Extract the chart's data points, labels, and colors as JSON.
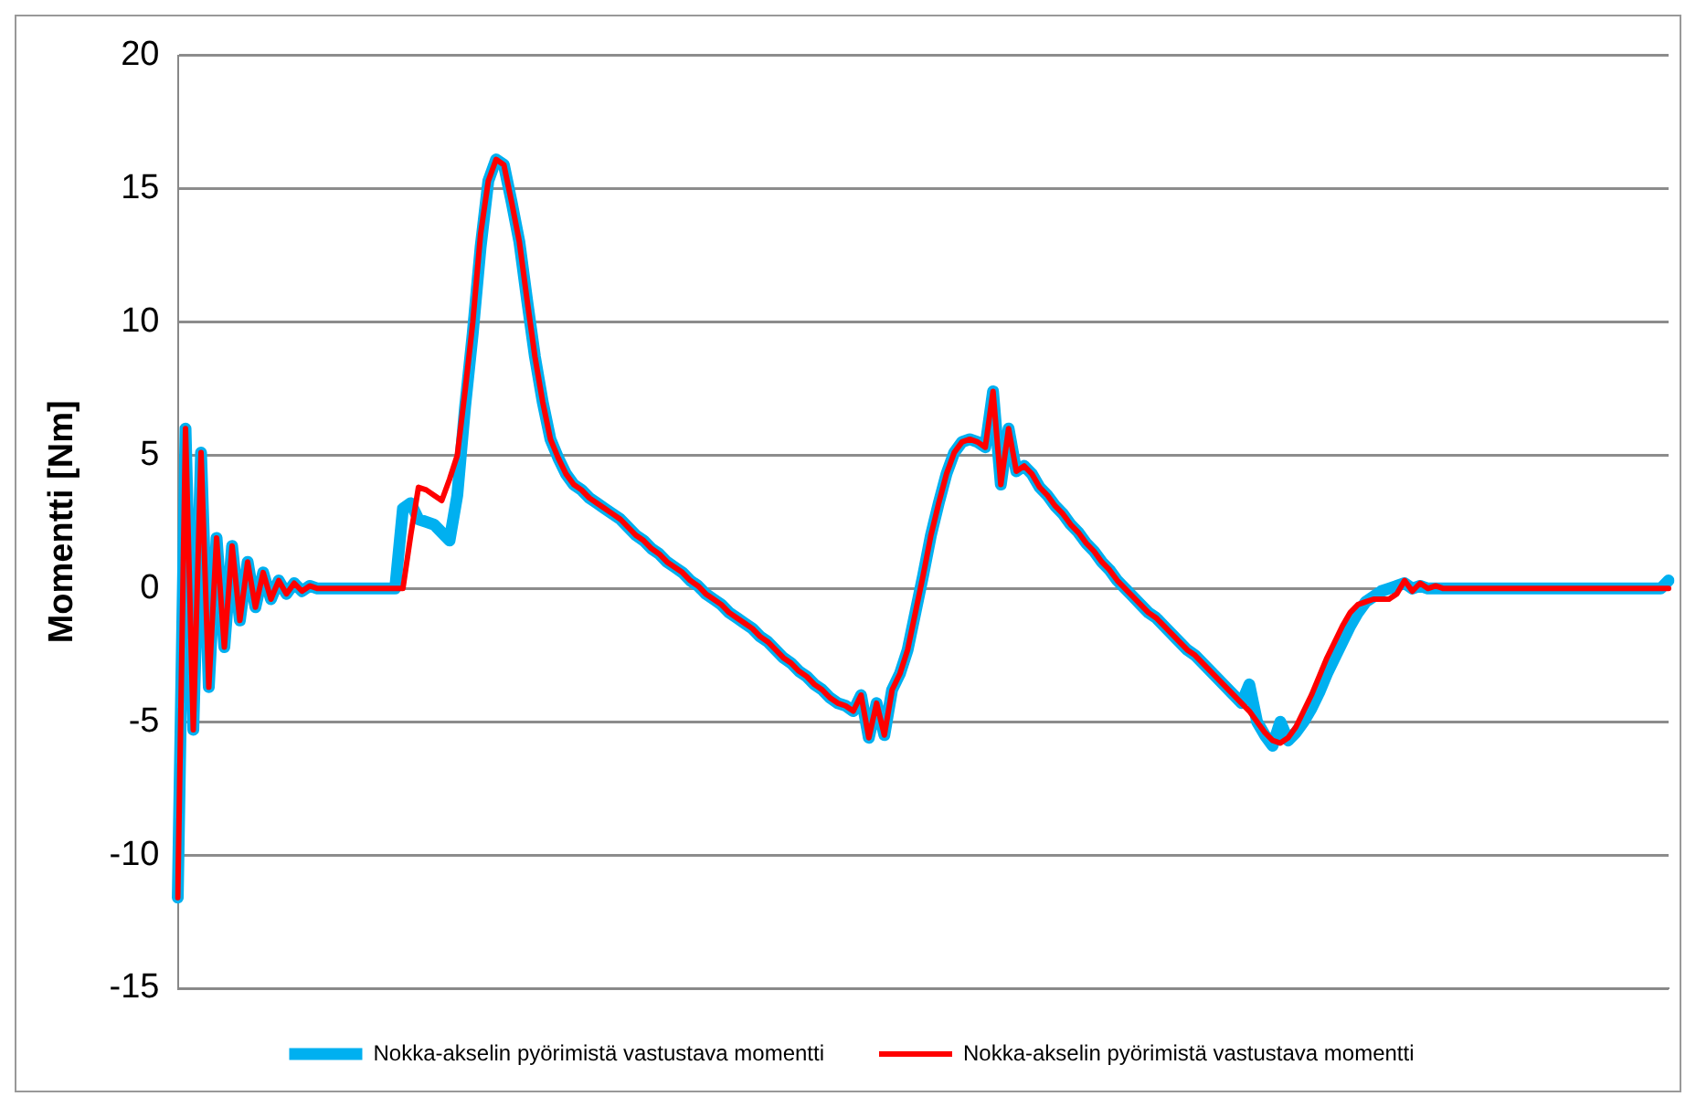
{
  "chart_data": {
    "type": "line",
    "ylabel": "Momentti [Nm]",
    "ylim": [
      -15,
      20
    ],
    "yticks": [
      -15,
      -10,
      -5,
      0,
      5,
      10,
      15,
      20
    ],
    "grid": "y",
    "legend": "bottom",
    "marker": "none",
    "line_style": "solid",
    "tick_labels": "y",
    "categories": [
      null,
      null,
      null,
      null,
      null,
      null,
      null,
      null,
      null,
      null,
      null,
      null,
      null,
      null,
      null,
      null,
      null,
      null,
      null,
      null,
      null,
      null,
      null,
      null,
      null,
      null,
      null,
      null,
      null,
      null,
      null,
      null,
      null,
      null,
      null,
      null,
      null,
      null,
      null,
      null,
      null,
      null,
      null,
      null,
      null,
      null,
      null,
      null,
      null,
      null,
      null,
      null,
      null,
      null,
      null,
      null,
      null,
      null,
      null,
      null,
      null,
      null,
      null,
      null,
      null,
      null,
      null,
      null,
      null,
      null,
      null,
      null,
      null,
      null,
      null,
      null,
      null,
      null,
      null,
      null,
      null,
      null,
      null,
      null,
      null,
      null,
      null,
      null,
      null,
      null,
      null,
      null,
      null,
      null,
      null,
      null,
      null,
      null,
      null,
      null,
      null,
      null,
      null,
      null,
      null,
      null,
      null,
      null,
      null,
      null,
      null,
      null,
      null,
      null,
      null,
      null,
      null,
      null,
      null,
      null,
      null,
      null,
      null,
      null,
      null,
      null,
      null,
      null,
      null,
      null,
      null,
      null,
      null,
      null,
      null,
      null,
      null,
      null,
      null,
      null,
      null,
      null,
      null,
      null,
      null,
      null,
      null,
      null,
      null,
      null,
      null,
      null,
      null,
      null,
      null,
      null,
      null,
      null,
      null,
      null,
      null,
      null,
      null,
      null,
      null,
      null,
      null,
      null,
      null,
      null,
      null,
      null,
      null,
      null,
      null,
      null,
      null,
      null,
      null,
      null,
      null,
      null,
      null,
      null,
      null,
      null,
      null,
      null,
      null,
      null,
      null,
      null,
      null
    ],
    "series": [
      {
        "name": "Nokka-akselin pyörimistä vastustava momentti",
        "color": "#00b0f0",
        "values": [
          -11.6,
          6.0,
          -5.3,
          5.1,
          -3.7,
          1.9,
          -2.2,
          1.6,
          -1.2,
          1.0,
          -0.7,
          0.6,
          -0.4,
          0.3,
          -0.2,
          0.2,
          -0.1,
          0.1,
          0,
          0,
          0,
          0,
          0,
          0,
          0,
          0,
          0,
          0,
          0,
          3.0,
          3.2,
          2.6,
          2.5,
          2.4,
          2.1,
          1.8,
          3.5,
          6.8,
          9.6,
          12.8,
          15.3,
          16.1,
          15.9,
          14.5,
          13.0,
          10.8,
          8.7,
          7.0,
          5.6,
          4.9,
          4.3,
          3.9,
          3.7,
          3.4,
          3.2,
          3.0,
          2.8,
          2.6,
          2.3,
          2.0,
          1.8,
          1.5,
          1.3,
          1.0,
          0.8,
          0.6,
          0.3,
          0.1,
          -0.2,
          -0.4,
          -0.6,
          -0.9,
          -1.1,
          -1.3,
          -1.5,
          -1.8,
          -2.0,
          -2.3,
          -2.6,
          -2.8,
          -3.1,
          -3.3,
          -3.6,
          -3.8,
          -4.1,
          -4.3,
          -4.4,
          -4.6,
          -4.0,
          -5.6,
          -4.3,
          -5.5,
          -3.8,
          -3.2,
          -2.3,
          -0.9,
          0.5,
          2.0,
          3.2,
          4.3,
          5.1,
          5.5,
          5.6,
          5.5,
          5.3,
          7.4,
          3.9,
          6.0,
          4.4,
          4.6,
          4.3,
          3.8,
          3.5,
          3.1,
          2.8,
          2.4,
          2.1,
          1.7,
          1.4,
          1.0,
          0.7,
          0.3,
          0.0,
          -0.3,
          -0.6,
          -0.9,
          -1.1,
          -1.4,
          -1.7,
          -2.0,
          -2.3,
          -2.5,
          -2.8,
          -3.1,
          -3.4,
          -3.7,
          -4.0,
          -4.3,
          -3.6,
          -5.0,
          -5.5,
          -5.9,
          -5.0,
          -5.7,
          -5.4,
          -5.0,
          -4.5,
          -3.9,
          -3.2,
          -2.6,
          -2.0,
          -1.4,
          -0.9,
          -0.5,
          -0.3,
          -0.1,
          0,
          0.1,
          0.2,
          0,
          0.1,
          0,
          0,
          0,
          0,
          0,
          0,
          0,
          0,
          0,
          0,
          0,
          0,
          0,
          0,
          0,
          0,
          0,
          0,
          0,
          0,
          0,
          0,
          0,
          0,
          0,
          0,
          0,
          0,
          0,
          0,
          0,
          0.3
        ]
      },
      {
        "name": "Nokka-akselin pyörimistä vastustava momentti",
        "color": "#ff0000",
        "values": [
          -11.6,
          6.0,
          -5.3,
          5.1,
          -3.7,
          1.9,
          -2.2,
          1.6,
          -1.2,
          1.0,
          -0.7,
          0.6,
          -0.4,
          0.3,
          -0.2,
          0.2,
          -0.1,
          0.1,
          0,
          0,
          0,
          0,
          0,
          0,
          0,
          0,
          0,
          0,
          0,
          0,
          2.0,
          3.8,
          3.7,
          3.5,
          3.3,
          4.1,
          5.0,
          7.4,
          10.0,
          13.3,
          15.3,
          16.1,
          15.9,
          14.5,
          13.0,
          10.8,
          8.7,
          7.0,
          5.6,
          4.9,
          4.3,
          3.9,
          3.7,
          3.4,
          3.2,
          3.0,
          2.8,
          2.6,
          2.3,
          2.0,
          1.8,
          1.5,
          1.3,
          1.0,
          0.8,
          0.6,
          0.3,
          0.1,
          -0.2,
          -0.4,
          -0.6,
          -0.9,
          -1.1,
          -1.3,
          -1.5,
          -1.8,
          -2.0,
          -2.3,
          -2.6,
          -2.8,
          -3.1,
          -3.3,
          -3.6,
          -3.8,
          -4.1,
          -4.3,
          -4.4,
          -4.6,
          -4.0,
          -5.6,
          -4.3,
          -5.5,
          -3.8,
          -3.2,
          -2.3,
          -0.9,
          0.5,
          2.0,
          3.2,
          4.3,
          5.1,
          5.5,
          5.6,
          5.5,
          5.3,
          7.4,
          3.9,
          6.0,
          4.4,
          4.6,
          4.3,
          3.8,
          3.5,
          3.1,
          2.8,
          2.4,
          2.1,
          1.7,
          1.4,
          1.0,
          0.7,
          0.3,
          0.0,
          -0.3,
          -0.6,
          -0.9,
          -1.1,
          -1.4,
          -1.7,
          -2.0,
          -2.3,
          -2.5,
          -2.8,
          -3.1,
          -3.4,
          -3.7,
          -4.0,
          -4.3,
          -4.6,
          -5.0,
          -5.4,
          -5.7,
          -5.8,
          -5.6,
          -5.2,
          -4.6,
          -4.0,
          -3.3,
          -2.6,
          -2.0,
          -1.4,
          -0.9,
          -0.6,
          -0.5,
          -0.4,
          -0.4,
          -0.4,
          -0.2,
          0.3,
          -0.1,
          0.2,
          0,
          0.1,
          0,
          0,
          0,
          0,
          0,
          0,
          0,
          0,
          0,
          0,
          0,
          0,
          0,
          0,
          0,
          0,
          0,
          0,
          0,
          0,
          0,
          0,
          0,
          0,
          0,
          0,
          0,
          0,
          0,
          0
        ]
      }
    ]
  }
}
